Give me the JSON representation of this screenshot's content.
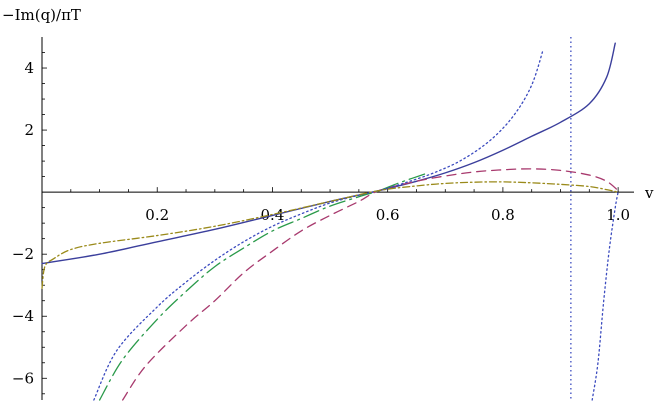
{
  "chart_data": {
    "type": "line",
    "ylabel": "−Im(q)/πT",
    "xlabel": "v",
    "xlim": [
      0.0,
      1.005
    ],
    "ylim": [
      -6.7,
      5.0
    ],
    "x_ticks": [
      {
        "value": 0.2,
        "label": "0.2"
      },
      {
        "value": 0.4,
        "label": "0.4"
      },
      {
        "value": 0.6,
        "label": "0.6"
      },
      {
        "value": 0.8,
        "label": "0.8"
      },
      {
        "value": 1.0,
        "label": "1.0"
      }
    ],
    "y_ticks": [
      {
        "value": 4,
        "label": "4"
      },
      {
        "value": 2,
        "label": "2"
      },
      {
        "value": -2,
        "label": "−2"
      },
      {
        "value": -4,
        "label": "−4"
      },
      {
        "value": -6,
        "label": "−6"
      }
    ],
    "vertical_line": {
      "x": 0.918,
      "color": "#3b4bbf",
      "style": "dotted"
    },
    "series": [
      {
        "color": "#3b3f9c",
        "style": "solid",
        "points": [
          [
            0.0,
            -2.3
          ],
          [
            0.1,
            -2.0
          ],
          [
            0.2,
            -1.6
          ],
          [
            0.3,
            -1.2
          ],
          [
            0.4,
            -0.75
          ],
          [
            0.5,
            -0.3
          ],
          [
            0.585,
            0.05
          ],
          [
            0.65,
            0.35
          ],
          [
            0.7,
            0.62
          ],
          [
            0.75,
            0.95
          ],
          [
            0.8,
            1.35
          ],
          [
            0.85,
            1.8
          ],
          [
            0.9,
            2.25
          ],
          [
            0.95,
            2.85
          ],
          [
            0.98,
            3.7
          ],
          [
            0.995,
            4.8
          ]
        ]
      },
      {
        "color": "#a83a6e",
        "style": "dashed",
        "points": [
          [
            0.14,
            -6.7
          ],
          [
            0.18,
            -5.6
          ],
          [
            0.25,
            -4.3
          ],
          [
            0.3,
            -3.5
          ],
          [
            0.35,
            -2.6
          ],
          [
            0.4,
            -1.9
          ],
          [
            0.45,
            -1.25
          ],
          [
            0.5,
            -0.75
          ],
          [
            0.55,
            -0.3
          ],
          [
            0.585,
            0.05
          ],
          [
            0.65,
            0.35
          ],
          [
            0.7,
            0.52
          ],
          [
            0.75,
            0.65
          ],
          [
            0.8,
            0.72
          ],
          [
            0.85,
            0.75
          ],
          [
            0.9,
            0.7
          ],
          [
            0.95,
            0.55
          ],
          [
            0.98,
            0.35
          ],
          [
            1.0,
            0.05
          ]
        ]
      },
      {
        "color": "#2a9a4a",
        "style": "longdash",
        "points": [
          [
            0.1,
            -6.7
          ],
          [
            0.14,
            -5.4
          ],
          [
            0.2,
            -4.1
          ],
          [
            0.25,
            -3.2
          ],
          [
            0.3,
            -2.4
          ],
          [
            0.35,
            -1.8
          ],
          [
            0.4,
            -1.25
          ],
          [
            0.45,
            -0.85
          ],
          [
            0.5,
            -0.45
          ],
          [
            0.55,
            -0.15
          ],
          [
            0.585,
            0.05
          ],
          [
            0.62,
            0.3
          ],
          [
            0.67,
            0.62
          ]
        ]
      },
      {
        "color": "#3b4bbf",
        "style": "dotted",
        "points": [
          [
            0.09,
            -6.7
          ],
          [
            0.13,
            -5.1
          ],
          [
            0.2,
            -3.7
          ],
          [
            0.25,
            -2.9
          ],
          [
            0.3,
            -2.2
          ],
          [
            0.35,
            -1.6
          ],
          [
            0.4,
            -1.1
          ],
          [
            0.45,
            -0.7
          ],
          [
            0.5,
            -0.35
          ],
          [
            0.55,
            -0.1
          ],
          [
            0.585,
            0.05
          ],
          [
            0.63,
            0.3
          ],
          [
            0.68,
            0.62
          ],
          [
            0.73,
            1.05
          ],
          [
            0.78,
            1.7
          ],
          [
            0.82,
            2.5
          ],
          [
            0.85,
            3.45
          ],
          [
            0.87,
            4.6
          ]
        ]
      },
      {
        "color": "#3b4bbf",
        "style": "dotted",
        "points": [
          [
            0.955,
            -6.7
          ],
          [
            0.965,
            -5.5
          ],
          [
            0.975,
            -3.5
          ],
          [
            0.985,
            -1.8
          ],
          [
            0.995,
            -0.5
          ],
          [
            1.0,
            0.0
          ]
        ]
      },
      {
        "color": "#9a8a1a",
        "style": "dashdot",
        "points": [
          [
            0.0,
            -3.1
          ],
          [
            0.005,
            -2.4
          ],
          [
            0.02,
            -2.15
          ],
          [
            0.05,
            -1.85
          ],
          [
            0.1,
            -1.65
          ],
          [
            0.2,
            -1.4
          ],
          [
            0.3,
            -1.1
          ],
          [
            0.4,
            -0.72
          ],
          [
            0.5,
            -0.3
          ],
          [
            0.585,
            0.05
          ],
          [
            0.65,
            0.2
          ],
          [
            0.7,
            0.28
          ],
          [
            0.75,
            0.32
          ],
          [
            0.8,
            0.33
          ],
          [
            0.85,
            0.3
          ],
          [
            0.9,
            0.25
          ],
          [
            0.95,
            0.18
          ],
          [
            0.98,
            0.08
          ],
          [
            1.0,
            0.0
          ]
        ]
      }
    ]
  }
}
